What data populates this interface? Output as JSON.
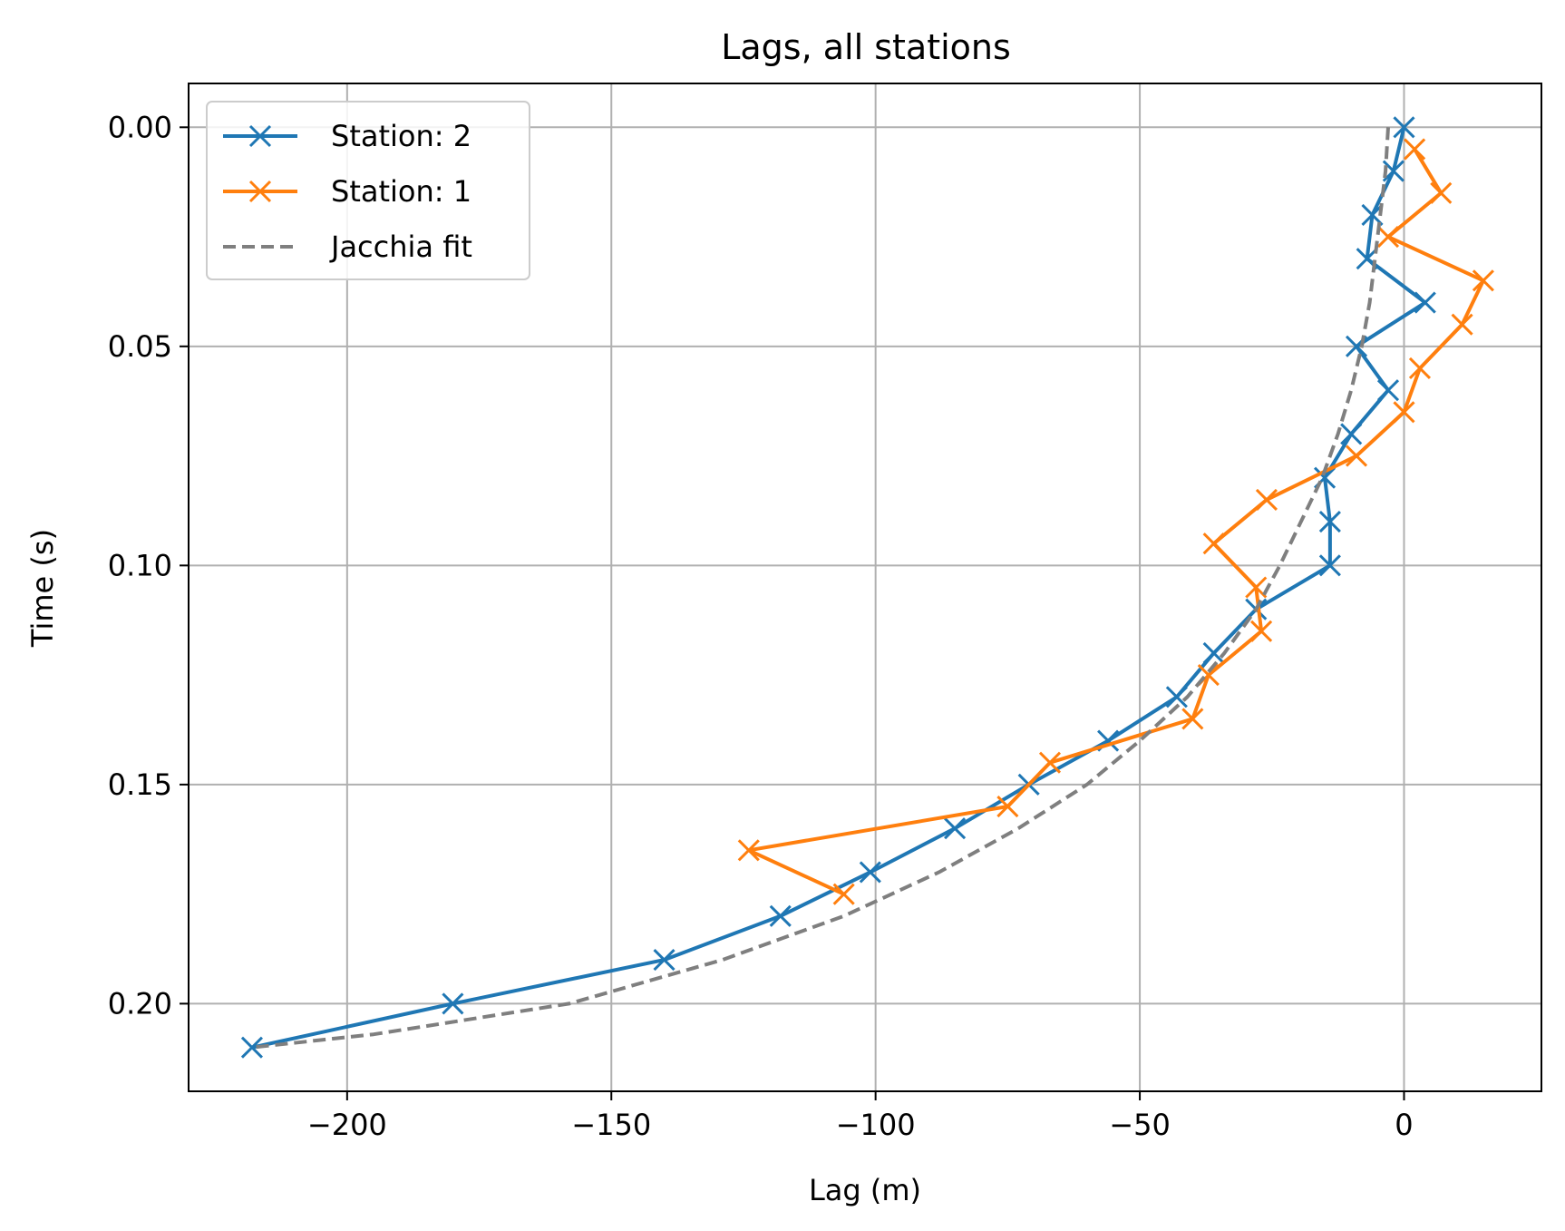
{
  "chart_data": {
    "type": "line",
    "title": "Lags, all stations",
    "xlabel": "Lag (m)",
    "ylabel": "Time (s)",
    "xlim": [
      -230,
      26
    ],
    "ylim": [
      0.22,
      -0.01
    ],
    "y_inverted": true,
    "grid": true,
    "legend_position": "top-left",
    "xticks": [
      -200,
      -150,
      -100,
      -50,
      0
    ],
    "xtick_labels": [
      "−200",
      "−150",
      "−100",
      "−50",
      "0"
    ],
    "yticks": [
      0.0,
      0.05,
      0.1,
      0.15,
      0.2
    ],
    "ytick_labels": [
      "0.00",
      "0.05",
      "0.10",
      "0.15",
      "0.20"
    ],
    "series": [
      {
        "name": "Station: 2",
        "color": "#1f77b4",
        "marker": "x",
        "linestyle": "solid",
        "points": [
          [
            0,
            0.0
          ],
          [
            -2,
            0.01
          ],
          [
            -6,
            0.02
          ],
          [
            -7,
            0.03
          ],
          [
            4,
            0.04
          ],
          [
            -9,
            0.05
          ],
          [
            -3,
            0.06
          ],
          [
            -10,
            0.07
          ],
          [
            -15,
            0.08
          ],
          [
            -14,
            0.09
          ],
          [
            -14,
            0.1
          ],
          [
            -28,
            0.11
          ],
          [
            -36,
            0.12
          ],
          [
            -43,
            0.13
          ],
          [
            -56,
            0.14
          ],
          [
            -71,
            0.15
          ],
          [
            -85,
            0.16
          ],
          [
            -101,
            0.17
          ],
          [
            -118,
            0.18
          ],
          [
            -140,
            0.19
          ],
          [
            -180,
            0.2
          ],
          [
            -218,
            0.21
          ]
        ]
      },
      {
        "name": "Station: 1",
        "color": "#ff7f0e",
        "marker": "x",
        "linestyle": "solid",
        "points": [
          [
            2,
            0.005
          ],
          [
            7,
            0.015
          ],
          [
            -3,
            0.025
          ],
          [
            15,
            0.035
          ],
          [
            11,
            0.045
          ],
          [
            3,
            0.055
          ],
          [
            0,
            0.065
          ],
          [
            -9,
            0.075
          ],
          [
            -26,
            0.085
          ],
          [
            -36,
            0.095
          ],
          [
            -28,
            0.105
          ],
          [
            -27,
            0.115
          ],
          [
            -37,
            0.125
          ],
          [
            -40,
            0.135
          ],
          [
            -67,
            0.145
          ],
          [
            -75,
            0.155
          ],
          [
            -124,
            0.165
          ],
          [
            -106,
            0.175
          ]
        ]
      },
      {
        "name": "Jacchia fit",
        "color": "#7f7f7f",
        "marker": "none",
        "linestyle": "dashed",
        "points": [
          [
            -3,
            0.0
          ],
          [
            -3.5,
            0.01
          ],
          [
            -4.5,
            0.02
          ],
          [
            -5.5,
            0.03
          ],
          [
            -6.5,
            0.04
          ],
          [
            -8,
            0.05
          ],
          [
            -10,
            0.06
          ],
          [
            -12.5,
            0.07
          ],
          [
            -15.5,
            0.08
          ],
          [
            -19.5,
            0.09
          ],
          [
            -23.5,
            0.1
          ],
          [
            -28,
            0.11
          ],
          [
            -34,
            0.12
          ],
          [
            -41,
            0.13
          ],
          [
            -50,
            0.14
          ],
          [
            -60,
            0.15
          ],
          [
            -73,
            0.16
          ],
          [
            -88,
            0.17
          ],
          [
            -106,
            0.18
          ],
          [
            -129,
            0.19
          ],
          [
            -158,
            0.2
          ],
          [
            -195,
            0.207
          ],
          [
            -218,
            0.21
          ]
        ]
      }
    ]
  }
}
